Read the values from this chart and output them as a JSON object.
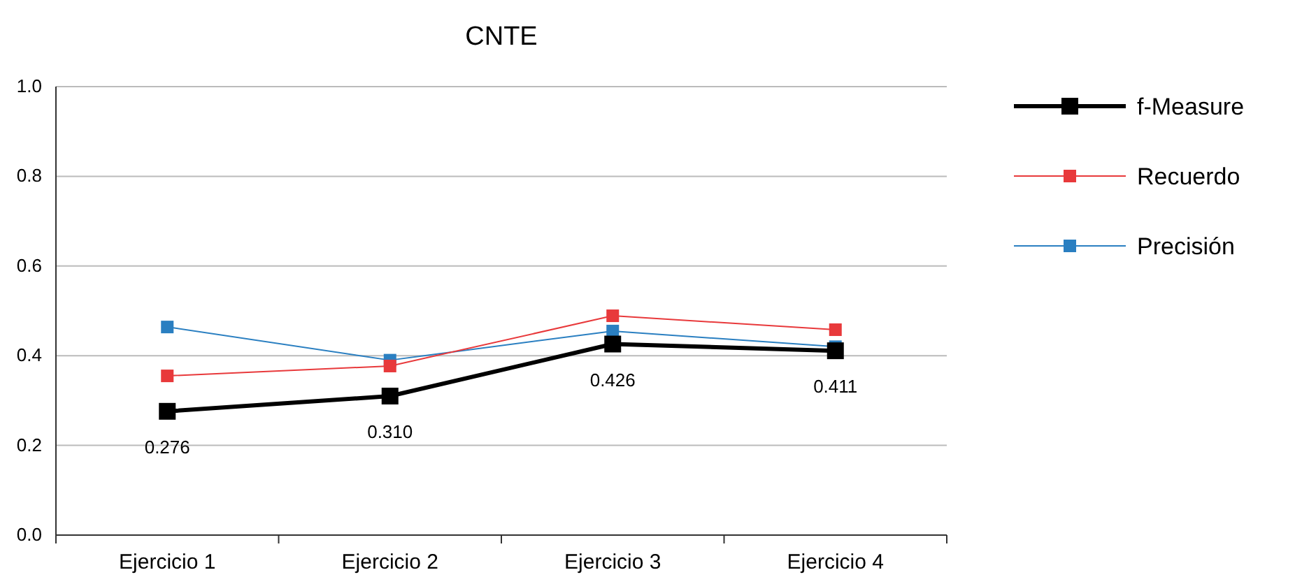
{
  "chart_data": {
    "type": "line",
    "title": "CNTE",
    "categories": [
      "Ejercicio 1",
      "Ejercicio 2",
      "Ejercicio 3",
      "Ejercicio 4"
    ],
    "series": [
      {
        "name": "f-Measure",
        "color": "#000000",
        "values": [
          0.276,
          0.31,
          0.426,
          0.411
        ],
        "value_labels": [
          "0.276",
          "0.310",
          "0.426",
          "0.411"
        ]
      },
      {
        "name": "Recuerdo",
        "color": "#e8393b",
        "values": [
          0.355,
          0.377,
          0.489,
          0.458
        ]
      },
      {
        "name": "Precisión",
        "color": "#2a7fc1",
        "values": [
          0.464,
          0.39,
          0.455,
          0.42
        ]
      }
    ],
    "ylim": [
      0,
      1
    ],
    "yticks": [
      {
        "value": 0,
        "label": "0.0"
      },
      {
        "value": 0.2,
        "label": "0.2"
      },
      {
        "value": 0.4,
        "label": "0.4"
      },
      {
        "value": 0.6,
        "label": "0.6"
      },
      {
        "value": 0.8,
        "label": "0.8"
      },
      {
        "value": 1,
        "label": "1.0"
      }
    ],
    "grid": "y",
    "legend": "right",
    "marker": "square"
  }
}
